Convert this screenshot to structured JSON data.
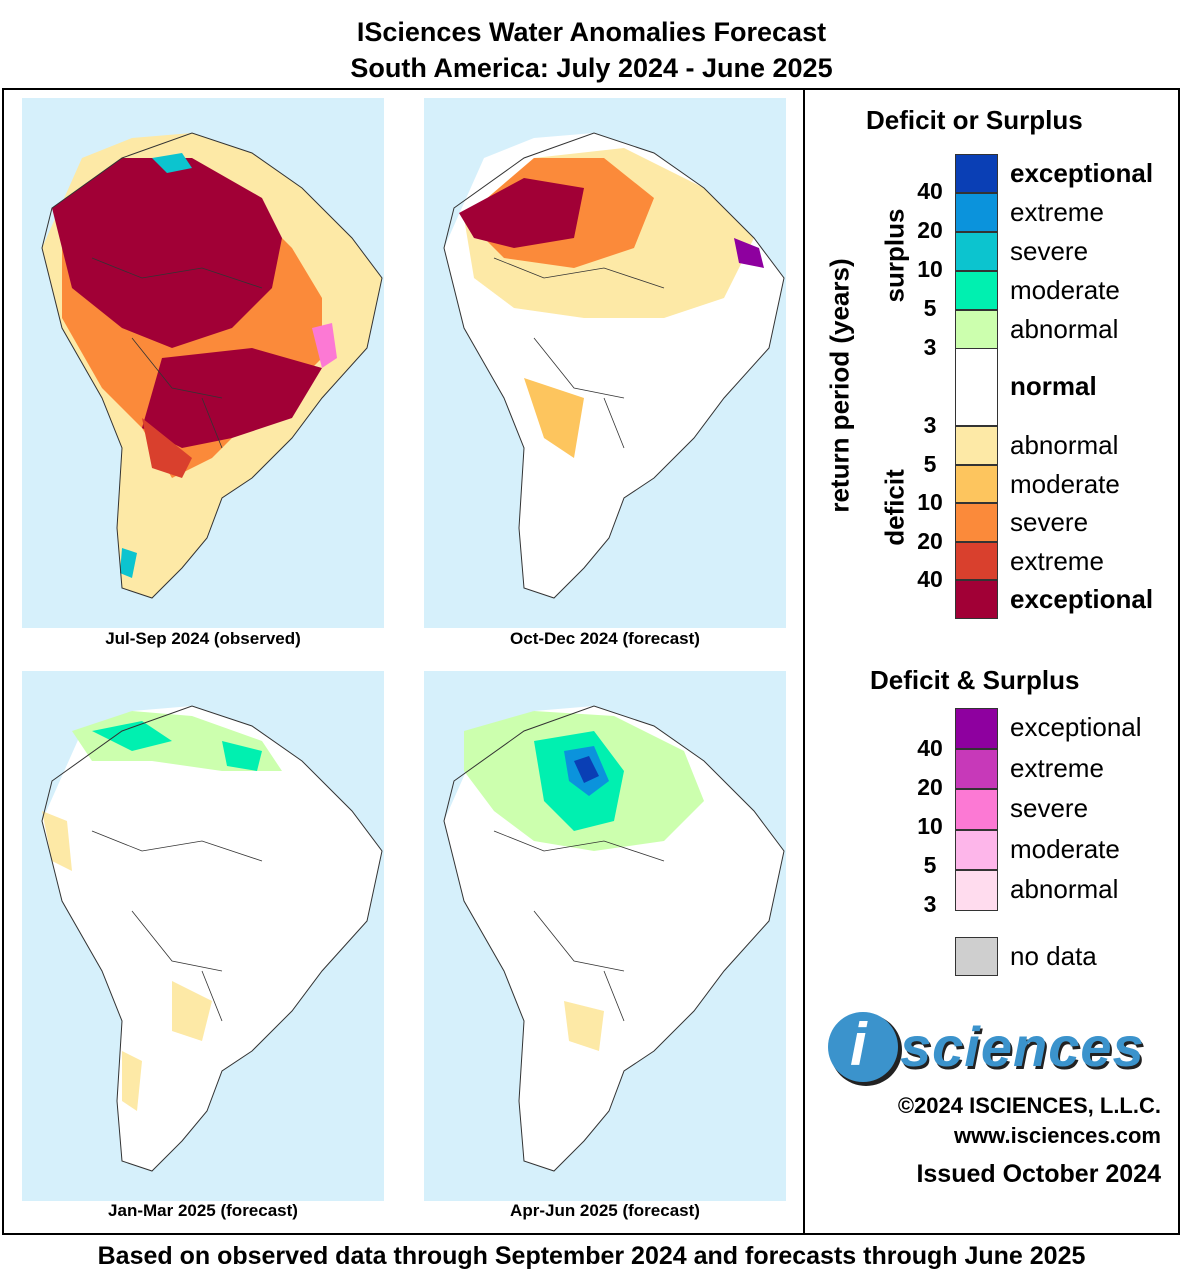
{
  "header": {
    "title_line1": "ISciences Water Anomalies Forecast",
    "title_line2": "South America: July 2024 - June 2025"
  },
  "panels": [
    {
      "caption": "Jul-Sep 2024 (observed)",
      "dominant": "exceptional deficit"
    },
    {
      "caption": "Oct-Dec 2024 (forecast)",
      "dominant": "deficit"
    },
    {
      "caption": "Jan-Mar 2025 (forecast)",
      "dominant": "normal"
    },
    {
      "caption": "Apr-Jun 2025 (forecast)",
      "dominant": "normal with surplus in north"
    }
  ],
  "legend": {
    "deficit_surplus_title": "Deficit or Surplus",
    "axis_label": "return period (years)",
    "surplus_label": "surplus",
    "deficit_label": "deficit",
    "surplus_numbers": [
      "40",
      "20",
      "10",
      "5",
      "3"
    ],
    "deficit_numbers": [
      "3",
      "5",
      "10",
      "20",
      "40"
    ],
    "surplus_classes": [
      {
        "label": "exceptional",
        "color": "#0a3fb5"
      },
      {
        "label": "extreme",
        "color": "#0b93dc"
      },
      {
        "label": "severe",
        "color": "#0cc4cf"
      },
      {
        "label": "moderate",
        "color": "#00f0b0"
      },
      {
        "label": "abnormal",
        "color": "#ccffae"
      }
    ],
    "normal_label": "normal",
    "deficit_classes": [
      {
        "label": "abnormal",
        "color": "#fde9a6"
      },
      {
        "label": "moderate",
        "color": "#fdc55e"
      },
      {
        "label": "severe",
        "color": "#fb8a3a"
      },
      {
        "label": "extreme",
        "color": "#d9402d"
      },
      {
        "label": "exceptional",
        "color": "#a10036"
      }
    ],
    "both_title": "Deficit & Surplus",
    "both_numbers": [
      "40",
      "20",
      "10",
      "5",
      "3"
    ],
    "both_classes": [
      {
        "label": "exceptional",
        "color": "#8e009f"
      },
      {
        "label": "extreme",
        "color": "#c739b9"
      },
      {
        "label": "severe",
        "color": "#fc79d4"
      },
      {
        "label": "moderate",
        "color": "#fdb6ea"
      },
      {
        "label": "abnormal",
        "color": "#ffdcee"
      }
    ],
    "no_data_label": "no data",
    "no_data_color": "#cfcfcf"
  },
  "branding": {
    "logo_i": "i",
    "logo_word": "sciences",
    "copyright": "©2024 ISCIENCES, L.L.C.",
    "website": "www.isciences.com",
    "issued": "Issued October 2024"
  },
  "footer": {
    "note": "Based on observed data through September 2024 and forecasts through June 2025"
  }
}
